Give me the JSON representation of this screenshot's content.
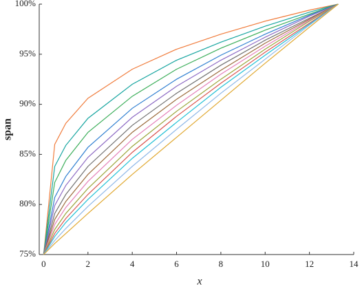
{
  "chart_data": {
    "type": "line",
    "xlabel": "x",
    "ylabel": "span",
    "x": [
      0,
      0.5,
      1,
      2,
      4,
      6,
      8,
      10,
      12,
      13.3
    ],
    "xlim": [
      -0.2,
      14
    ],
    "xticks": [
      0,
      2,
      4,
      6,
      8,
      10,
      12,
      14
    ],
    "ylim": [
      75,
      100
    ],
    "yticks": [
      {
        "value": 75,
        "label": "75%"
      },
      {
        "value": 80,
        "label": "80%"
      },
      {
        "value": 85,
        "label": "85%"
      },
      {
        "value": 90,
        "label": "90%"
      },
      {
        "value": 95,
        "label": "95%"
      },
      {
        "value": 100,
        "label": "100%"
      }
    ],
    "grid": false,
    "series": [
      {
        "color": "#f07c3c",
        "values": [
          75,
          86.0,
          88.1,
          90.6,
          93.5,
          95.5,
          97.0,
          98.3,
          99.4,
          100
        ]
      },
      {
        "color": "#17a5a0",
        "values": [
          75,
          83.8,
          85.9,
          88.6,
          92.0,
          94.4,
          96.2,
          97.8,
          99.2,
          100
        ]
      },
      {
        "color": "#3cae5a",
        "values": [
          75,
          82.2,
          84.4,
          87.2,
          90.8,
          93.5,
          95.6,
          97.4,
          99.0,
          100
        ]
      },
      {
        "color": "#2f7fd1",
        "values": [
          75,
          80.7,
          82.8,
          85.7,
          89.6,
          92.5,
          94.9,
          97.0,
          98.9,
          100
        ]
      },
      {
        "color": "#8d6bc4",
        "values": [
          75,
          79.9,
          81.9,
          84.7,
          88.7,
          91.8,
          94.4,
          96.7,
          98.8,
          100
        ]
      },
      {
        "color": "#707070",
        "values": [
          75,
          79.1,
          81.0,
          83.8,
          87.9,
          91.1,
          93.9,
          96.4,
          98.6,
          100
        ]
      },
      {
        "color": "#9c6b3c",
        "values": [
          75,
          78.5,
          80.3,
          83.0,
          87.2,
          90.5,
          93.4,
          96.1,
          98.5,
          100
        ]
      },
      {
        "color": "#e47fb8",
        "values": [
          75,
          78.0,
          79.7,
          82.3,
          86.5,
          89.9,
          93.0,
          95.8,
          98.4,
          100
        ]
      },
      {
        "color": "#9aa63a",
        "values": [
          75,
          77.5,
          79.1,
          81.6,
          85.8,
          89.3,
          92.5,
          95.5,
          98.3,
          100
        ]
      },
      {
        "color": "#d9534f",
        "values": [
          75,
          77.1,
          78.6,
          81.0,
          85.2,
          88.8,
          92.1,
          95.2,
          98.1,
          100
        ]
      },
      {
        "color": "#22c0d6",
        "values": [
          75,
          76.8,
          78.2,
          80.5,
          84.6,
          88.2,
          91.7,
          94.9,
          98.0,
          100
        ]
      },
      {
        "color": "#8fb8e8",
        "values": [
          75,
          76.4,
          77.6,
          79.8,
          83.8,
          87.5,
          91.1,
          94.5,
          97.9,
          100
        ]
      },
      {
        "color": "#e0a830",
        "values": [
          75,
          76.1,
          77.1,
          79.1,
          83.0,
          86.7,
          90.4,
          94.1,
          97.7,
          100
        ]
      }
    ]
  }
}
